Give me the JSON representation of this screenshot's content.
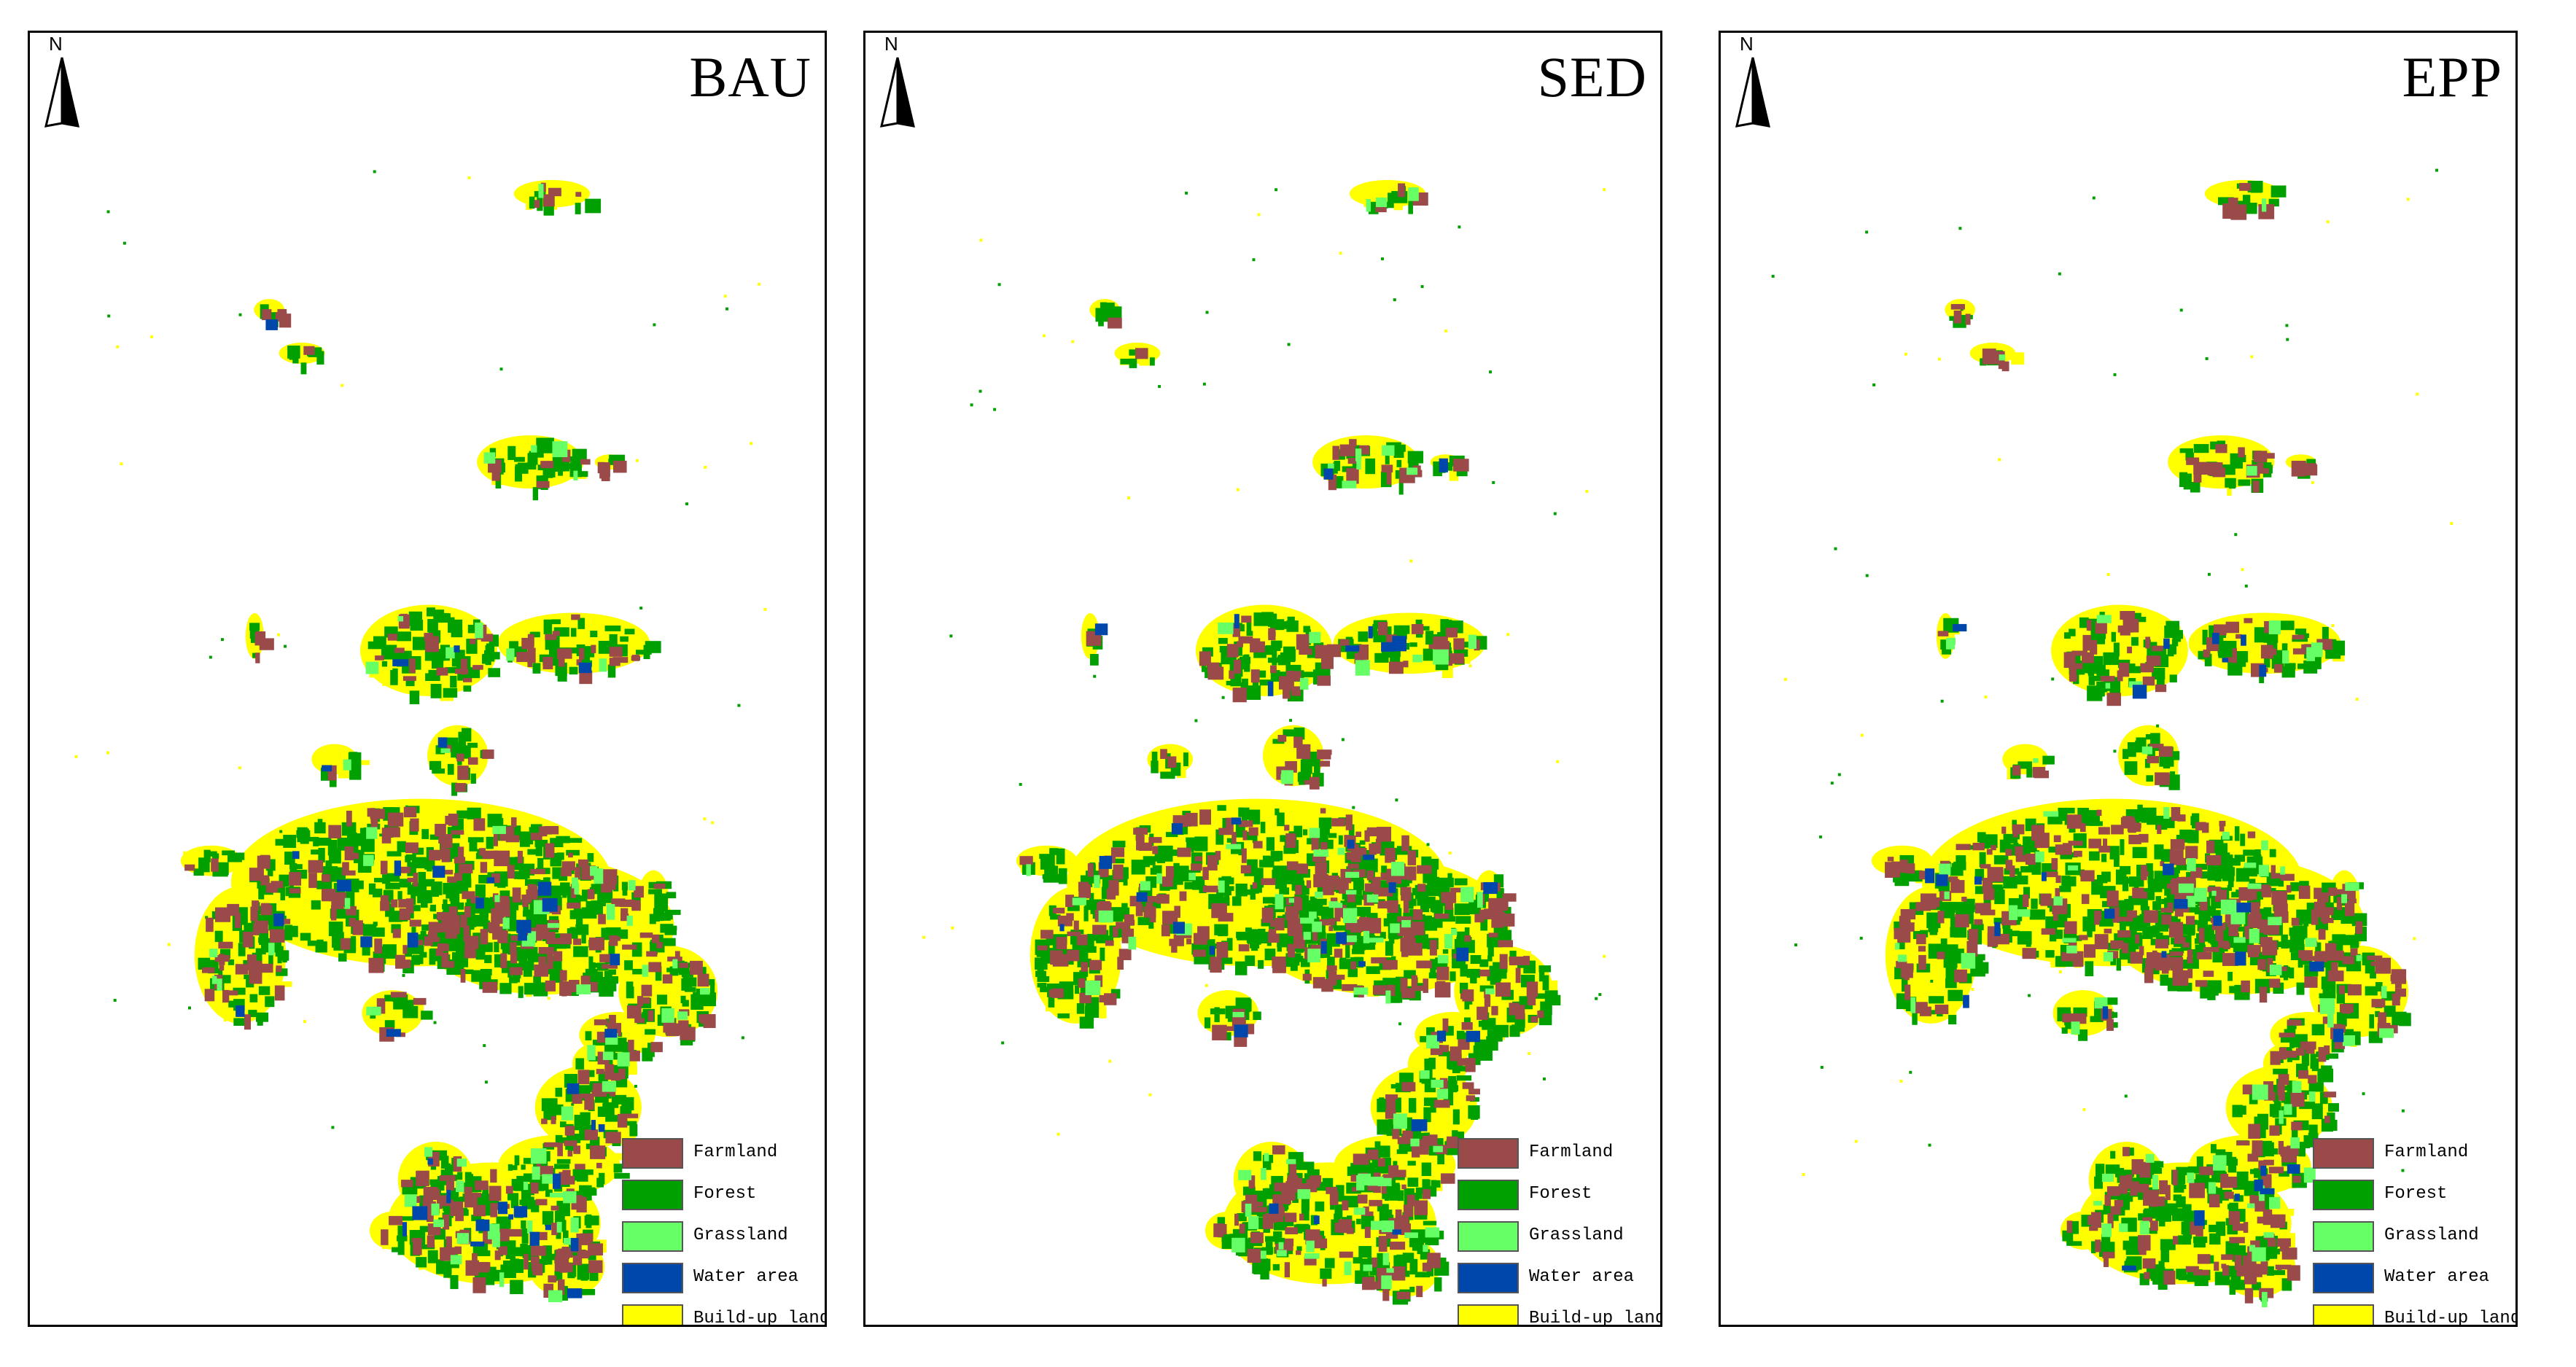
{
  "north_label": "N",
  "colors": {
    "farmland": "#9b4a4a",
    "forest": "#00a000",
    "grassland": "#66ff66",
    "water": "#0047ab",
    "buildup": "#ffff00"
  },
  "legend": [
    {
      "label": "Farmland",
      "color": "#9b4a4a"
    },
    {
      "label": "Forest",
      "color": "#00a000"
    },
    {
      "label": "Grassland",
      "color": "#66ff66"
    },
    {
      "label": "Water area",
      "color": "#0047ab"
    },
    {
      "label": "Build-up land",
      "color": "#ffff00"
    }
  ],
  "panels": [
    {
      "scenario": "BAU"
    },
    {
      "scenario": "SED"
    },
    {
      "scenario": "EPP"
    }
  ]
}
